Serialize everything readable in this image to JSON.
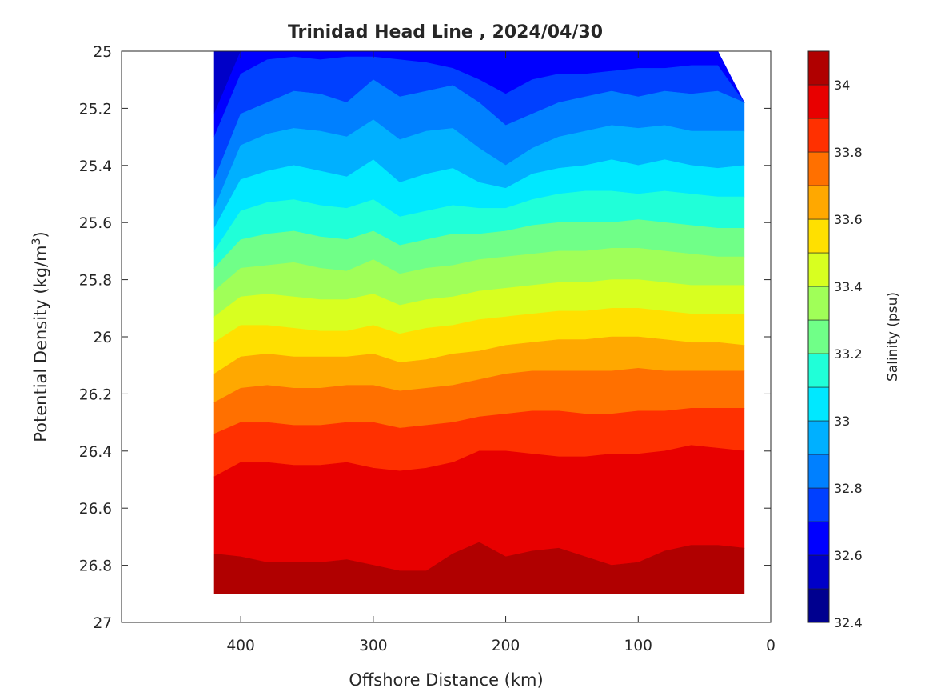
{
  "chart_data": {
    "type": "contour",
    "title": "Trinidad Head Line , 2024/04/30",
    "xlabel": "Offshore Distance (km)",
    "ylabel": "Potential Density (kg/m",
    "ylabel_superscript": "3",
    "ylabel_close": ")",
    "colorbar_label": "Salinity (psu)",
    "xlim": [
      0,
      490
    ],
    "x_reversed": true,
    "ylim": [
      25,
      27
    ],
    "y_reversed": true,
    "x_ticks": [
      400,
      300,
      200,
      100,
      0
    ],
    "y_ticks": [
      25,
      25.2,
      25.4,
      25.6,
      25.8,
      26,
      26.2,
      26.4,
      26.6,
      26.8,
      27
    ],
    "colorbar_range": [
      32.4,
      34.1
    ],
    "colorbar_ticks": [
      32.4,
      32.6,
      32.8,
      33,
      33.2,
      33.4,
      33.6,
      33.8,
      34
    ],
    "levels": [
      32.4,
      32.5,
      32.6,
      32.7,
      32.8,
      32.9,
      33.0,
      33.1,
      33.2,
      33.3,
      33.4,
      33.5,
      33.6,
      33.7,
      33.8,
      33.9,
      34.0,
      34.1
    ],
    "colors": [
      "#00008f",
      "#0000c8",
      "#0000ff",
      "#0040ff",
      "#0080ff",
      "#00b0ff",
      "#00e8ff",
      "#20ffd8",
      "#70ff88",
      "#a0ff58",
      "#d8ff20",
      "#ffe000",
      "#ffa800",
      "#ff7000",
      "#ff3000",
      "#e80000",
      "#b00000"
    ],
    "section_x": [
      420,
      400,
      380,
      360,
      340,
      320,
      300,
      280,
      260,
      240,
      220,
      200,
      180,
      160,
      140,
      120,
      100,
      80,
      60,
      40,
      20
    ],
    "section_bottom": [
      26.9,
      26.9,
      26.9,
      26.9,
      26.9,
      26.9,
      26.9,
      26.9,
      26.9,
      26.9,
      26.9,
      26.9,
      26.9,
      26.9,
      26.9,
      26.9,
      26.9,
      26.9,
      26.9,
      26.9,
      26.9
    ],
    "section_top": [
      25.0,
      25.0,
      25.0,
      25.0,
      25.0,
      25.0,
      25.0,
      25.0,
      25.0,
      25.0,
      25.0,
      25.0,
      25.0,
      25.0,
      25.0,
      25.0,
      25.0,
      25.0,
      25.0,
      25.0,
      25.18
    ],
    "isolines": [
      {
        "level": 32.6,
        "y": [
          25.22,
          25.0,
          25.0,
          25.0,
          25.0,
          25.0,
          25.0,
          25.0,
          25.0,
          25.0,
          25.0,
          25.0,
          25.0,
          25.0,
          25.0,
          25.0,
          25.0,
          25.0,
          25.0,
          25.0,
          25.0
        ]
      },
      {
        "level": 32.7,
        "y": [
          25.3,
          25.08,
          25.03,
          25.02,
          25.03,
          25.02,
          25.02,
          25.03,
          25.04,
          25.06,
          25.1,
          25.15,
          25.1,
          25.08,
          25.08,
          25.07,
          25.06,
          25.06,
          25.05,
          25.05,
          25.05
        ]
      },
      {
        "level": 32.8,
        "y": [
          25.45,
          25.22,
          25.18,
          25.14,
          25.15,
          25.18,
          25.1,
          25.16,
          25.14,
          25.12,
          25.18,
          25.26,
          25.22,
          25.18,
          25.16,
          25.14,
          25.16,
          25.14,
          25.15,
          25.14,
          25.14
        ]
      },
      {
        "level": 32.9,
        "y": [
          25.55,
          25.33,
          25.29,
          25.27,
          25.28,
          25.3,
          25.24,
          25.31,
          25.28,
          25.27,
          25.34,
          25.4,
          25.34,
          25.3,
          25.28,
          25.26,
          25.27,
          25.26,
          25.28,
          25.28,
          25.28
        ]
      },
      {
        "level": 33.0,
        "y": [
          25.62,
          25.45,
          25.42,
          25.4,
          25.42,
          25.44,
          25.38,
          25.46,
          25.43,
          25.41,
          25.46,
          25.48,
          25.43,
          25.41,
          25.4,
          25.38,
          25.4,
          25.38,
          25.4,
          25.41,
          25.4
        ]
      },
      {
        "level": 33.1,
        "y": [
          25.7,
          25.56,
          25.53,
          25.52,
          25.54,
          25.55,
          25.52,
          25.58,
          25.56,
          25.54,
          25.55,
          25.55,
          25.52,
          25.5,
          25.49,
          25.49,
          25.5,
          25.49,
          25.5,
          25.51,
          25.51
        ]
      },
      {
        "level": 33.2,
        "y": [
          25.76,
          25.66,
          25.64,
          25.63,
          25.65,
          25.66,
          25.63,
          25.68,
          25.66,
          25.64,
          25.64,
          25.63,
          25.61,
          25.6,
          25.6,
          25.6,
          25.59,
          25.6,
          25.61,
          25.62,
          25.62
        ]
      },
      {
        "level": 33.3,
        "y": [
          25.84,
          25.76,
          25.75,
          25.74,
          25.76,
          25.77,
          25.73,
          25.78,
          25.76,
          25.75,
          25.73,
          25.72,
          25.71,
          25.7,
          25.7,
          25.69,
          25.69,
          25.7,
          25.71,
          25.72,
          25.72
        ]
      },
      {
        "level": 33.4,
        "y": [
          25.93,
          25.86,
          25.85,
          25.86,
          25.87,
          25.87,
          25.85,
          25.89,
          25.87,
          25.86,
          25.84,
          25.83,
          25.82,
          25.81,
          25.81,
          25.8,
          25.8,
          25.81,
          25.82,
          25.82,
          25.82
        ]
      },
      {
        "level": 33.5,
        "y": [
          26.02,
          25.96,
          25.96,
          25.97,
          25.98,
          25.98,
          25.96,
          25.99,
          25.97,
          25.96,
          25.94,
          25.93,
          25.92,
          25.91,
          25.91,
          25.9,
          25.9,
          25.91,
          25.92,
          25.92,
          25.92
        ]
      },
      {
        "level": 33.6,
        "y": [
          26.13,
          26.07,
          26.06,
          26.07,
          26.07,
          26.07,
          26.06,
          26.09,
          26.08,
          26.06,
          26.05,
          26.03,
          26.02,
          26.01,
          26.01,
          26.0,
          26.0,
          26.01,
          26.02,
          26.02,
          26.03
        ]
      },
      {
        "level": 33.7,
        "y": [
          26.23,
          26.18,
          26.17,
          26.18,
          26.18,
          26.17,
          26.17,
          26.19,
          26.18,
          26.17,
          26.15,
          26.13,
          26.12,
          26.12,
          26.12,
          26.12,
          26.11,
          26.12,
          26.12,
          26.12,
          26.12
        ]
      },
      {
        "level": 33.8,
        "y": [
          26.34,
          26.3,
          26.3,
          26.31,
          26.31,
          26.3,
          26.3,
          26.32,
          26.31,
          26.3,
          26.28,
          26.27,
          26.26,
          26.26,
          26.27,
          26.27,
          26.26,
          26.26,
          26.25,
          26.25,
          26.25
        ]
      },
      {
        "level": 33.9,
        "y": [
          26.49,
          26.44,
          26.44,
          26.45,
          26.45,
          26.44,
          26.46,
          26.47,
          26.46,
          26.44,
          26.4,
          26.4,
          26.41,
          26.42,
          26.42,
          26.41,
          26.41,
          26.4,
          26.38,
          26.39,
          26.4
        ]
      },
      {
        "level": 34.0,
        "y": [
          26.76,
          26.77,
          26.79,
          26.79,
          26.79,
          26.78,
          26.8,
          26.82,
          26.82,
          26.76,
          26.72,
          26.77,
          26.75,
          26.74,
          26.77,
          26.8,
          26.79,
          26.75,
          26.73,
          26.73,
          26.74
        ]
      }
    ]
  }
}
